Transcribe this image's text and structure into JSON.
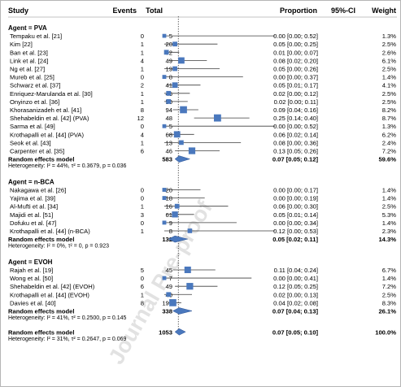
{
  "header": {
    "study": "Study",
    "events": "Events",
    "total": "Total",
    "proportion": "Proportion",
    "ci": "95%-CI",
    "weight": "Weight"
  },
  "watermark": "Journal Pre-proof",
  "colors": {
    "square": "#4a78bd",
    "diamond": "#4a78bd",
    "line": "#3d3d3d",
    "dotted": "#333333"
  },
  "chart_data": {
    "type": "forest",
    "x_reference": 0.066,
    "groups": [
      {
        "label": "Agent = PVA",
        "studies": [
          {
            "name": "Tempaku et al. [21]",
            "events": "0",
            "total": "5",
            "est": 0.0,
            "lo": 0.0,
            "hi": 0.52,
            "ci_text": "0.00 [0.00; 0.52]",
            "weight": "1.3%",
            "w": 1.3
          },
          {
            "name": "Kim [22]",
            "events": "1",
            "total": "20",
            "est": 0.05,
            "lo": 0.0,
            "hi": 0.25,
            "ci_text": "0.05 [0.00; 0.25]",
            "weight": "2.5%",
            "w": 2.5
          },
          {
            "name": "Ban et al. [23]",
            "events": "1",
            "total": "72",
            "est": 0.01,
            "lo": 0.0,
            "hi": 0.07,
            "ci_text": "0.01 [0.00; 0.07]",
            "weight": "2.6%",
            "w": 2.6
          },
          {
            "name": "Link et al. [24]",
            "events": "4",
            "total": "49",
            "est": 0.08,
            "lo": 0.02,
            "hi": 0.2,
            "ci_text": "0.08 [0.02; 0.20]",
            "weight": "6.1%",
            "w": 6.1
          },
          {
            "name": "Ng et al. [27]",
            "events": "1",
            "total": "19",
            "est": 0.05,
            "lo": 0.0,
            "hi": 0.26,
            "ci_text": "0.05 [0.00; 0.26]",
            "weight": "2.5%",
            "w": 2.5
          },
          {
            "name": "Mureb et al. [25]",
            "events": "0",
            "total": "8",
            "est": 0.0,
            "lo": 0.0,
            "hi": 0.37,
            "ci_text": "0.00 [0.00; 0.37]",
            "weight": "1.4%",
            "w": 1.4
          },
          {
            "name": "Schwarz et al. [37]",
            "events": "2",
            "total": "41",
            "est": 0.05,
            "lo": 0.01,
            "hi": 0.17,
            "ci_text": "0.05 [0.01; 0.17]",
            "weight": "4.1%",
            "w": 4.1
          },
          {
            "name": "Enriquez-Marulanda et al. [30]",
            "events": "1",
            "total": "45",
            "est": 0.02,
            "lo": 0.0,
            "hi": 0.12,
            "ci_text": "0.02 [0.00; 0.12]",
            "weight": "2.5%",
            "w": 2.5
          },
          {
            "name": "Onyinzo et al. [36]",
            "events": "1",
            "total": "50",
            "est": 0.02,
            "lo": 0.0,
            "hi": 0.11,
            "ci_text": "0.02 [0.00; 0.11]",
            "weight": "2.5%",
            "w": 2.5
          },
          {
            "name": "Khorasanizadeh et al. [41]",
            "events": "8",
            "total": "94",
            "est": 0.09,
            "lo": 0.04,
            "hi": 0.16,
            "ci_text": "0.09 [0.04; 0.16]",
            "weight": "8.2%",
            "w": 8.2
          },
          {
            "name": "Shehabeldin et al. [42] (PVA)",
            "events": "12",
            "total": "48",
            "est": 0.25,
            "lo": 0.14,
            "hi": 0.4,
            "ci_text": "0.25 [0.14; 0.40]",
            "weight": "8.7%",
            "w": 8.7
          },
          {
            "name": "Sarma et al. [49]",
            "events": "0",
            "total": "5",
            "est": 0.0,
            "lo": 0.0,
            "hi": 0.52,
            "ci_text": "0.00 [0.00; 0.52]",
            "weight": "1.3%",
            "w": 1.3
          },
          {
            "name": "Krothapalli et al. [44] (PVA)",
            "events": "4",
            "total": "68",
            "est": 0.06,
            "lo": 0.02,
            "hi": 0.14,
            "ci_text": "0.06 [0.02; 0.14]",
            "weight": "6.2%",
            "w": 6.2
          },
          {
            "name": "Seok et al. [43]",
            "events": "1",
            "total": "13",
            "est": 0.08,
            "lo": 0.0,
            "hi": 0.36,
            "ci_text": "0.08 [0.00; 0.36]",
            "weight": "2.4%",
            "w": 2.4
          },
          {
            "name": "Carpenter et al. [35]",
            "events": "6",
            "total": "46",
            "est": 0.13,
            "lo": 0.05,
            "hi": 0.26,
            "ci_text": "0.13 [0.05; 0.26]",
            "weight": "7.2%",
            "w": 7.2
          }
        ],
        "summary": {
          "label": "Random effects model",
          "total": "583",
          "est": 0.07,
          "lo": 0.05,
          "hi": 0.12,
          "ci_text": "0.07 [0.05; 0.12]",
          "weight": "59.6%"
        },
        "heterogeneity": "Heterogeneity: I² = 44%, τ² = 0.3679, p = 0.036"
      },
      {
        "label": "Agent = n-BCA",
        "studies": [
          {
            "name": "Nakagawa et al. [26]",
            "events": "0",
            "total": "20",
            "est": 0.0,
            "lo": 0.0,
            "hi": 0.17,
            "ci_text": "0.00 [0.00; 0.17]",
            "weight": "1.4%",
            "w": 1.4
          },
          {
            "name": "Yajima et al. [39]",
            "events": "0",
            "total": "18",
            "est": 0.0,
            "lo": 0.0,
            "hi": 0.19,
            "ci_text": "0.00 [0.00; 0.19]",
            "weight": "1.4%",
            "w": 1.4
          },
          {
            "name": "Al-Mufti et al. [34]",
            "events": "1",
            "total": "16",
            "est": 0.06,
            "lo": 0.0,
            "hi": 0.3,
            "ci_text": "0.06 [0.00; 0.30]",
            "weight": "2.5%",
            "w": 2.5
          },
          {
            "name": "Majidi et al. [51]",
            "events": "3",
            "total": "61",
            "est": 0.05,
            "lo": 0.01,
            "hi": 0.14,
            "ci_text": "0.05 [0.01; 0.14]",
            "weight": "5.3%",
            "w": 5.3
          },
          {
            "name": "Dofuku et al. [47]",
            "events": "0",
            "total": "9",
            "est": 0.0,
            "lo": 0.0,
            "hi": 0.34,
            "ci_text": "0.00 [0.00; 0.34]",
            "weight": "1.4%",
            "w": 1.4
          },
          {
            "name": "Krothapalli et al. [44] (n-BCA)",
            "events": "1",
            "total": "8",
            "est": 0.12,
            "lo": 0.0,
            "hi": 0.53,
            "ci_text": "0.12 [0.00; 0.53]",
            "weight": "2.3%",
            "w": 2.3
          }
        ],
        "summary": {
          "label": "Random effects model",
          "total": "132",
          "est": 0.05,
          "lo": 0.02,
          "hi": 0.11,
          "ci_text": "0.05 [0.02; 0.11]",
          "weight": "14.3%"
        },
        "heterogeneity": "Heterogeneity: I² = 0%, τ² = 0, p = 0.923"
      },
      {
        "label": "Agent = EVOH",
        "studies": [
          {
            "name": "Rajah et al. [19]",
            "events": "5",
            "total": "45",
            "est": 0.11,
            "lo": 0.04,
            "hi": 0.24,
            "ci_text": "0.11 [0.04; 0.24]",
            "weight": "6.7%",
            "w": 6.7
          },
          {
            "name": "Wong et al. [50]",
            "events": "0",
            "total": "7",
            "est": 0.0,
            "lo": 0.0,
            "hi": 0.41,
            "ci_text": "0.00 [0.00; 0.41]",
            "weight": "1.4%",
            "w": 1.4
          },
          {
            "name": "Shehabeldin et al. [42] (EVOH)",
            "events": "6",
            "total": "49",
            "est": 0.12,
            "lo": 0.05,
            "hi": 0.25,
            "ci_text": "0.12 [0.05; 0.25]",
            "weight": "7.2%",
            "w": 7.2
          },
          {
            "name": "Krothapalli et al. [44] (EVOH)",
            "events": "1",
            "total": "40",
            "est": 0.02,
            "lo": 0.0,
            "hi": 0.13,
            "ci_text": "0.02 [0.00; 0.13]",
            "weight": "2.5%",
            "w": 2.5
          },
          {
            "name": "Davies et al. [40]",
            "events": "8",
            "total": "197",
            "est": 0.04,
            "lo": 0.02,
            "hi": 0.08,
            "ci_text": "0.04 [0.02; 0.08]",
            "weight": "8.3%",
            "w": 8.3
          }
        ],
        "summary": {
          "label": "Random effects model",
          "total": "338",
          "est": 0.07,
          "lo": 0.04,
          "hi": 0.13,
          "ci_text": "0.07 [0.04; 0.13]",
          "weight": "26.1%"
        },
        "heterogeneity": "Heterogeneity: I² = 41%, τ² = 0.2500, p = 0.145"
      }
    ],
    "overall": {
      "label": "Random effects model",
      "total": "1053",
      "est": 0.07,
      "lo": 0.05,
      "hi": 0.1,
      "ci_text": "0.07 [0.05; 0.10]",
      "weight": "100.0%",
      "heterogeneity": "Heterogeneity: I² = 31%, τ² = 0.2647, p = 0.069"
    }
  }
}
